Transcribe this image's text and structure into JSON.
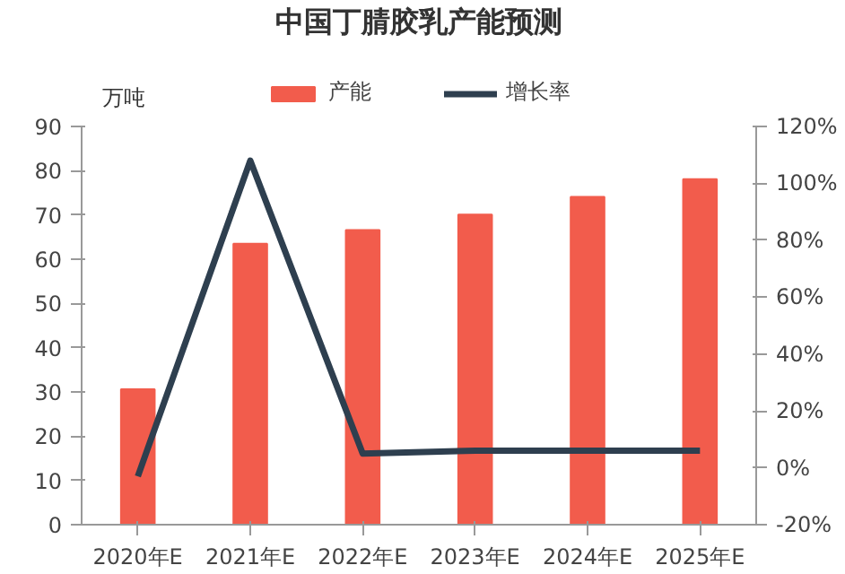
{
  "chart_data": {
    "type": "bar",
    "title": "中国丁腈胶乳产能预测",
    "ylabel": "万吨",
    "categories": [
      "2020年E",
      "2021年E",
      "2022年E",
      "2023年E",
      "2024年E",
      "2025年E"
    ],
    "series": [
      {
        "name": "产能",
        "color": "#f25c4c",
        "values": [
          30.6,
          63.5,
          66.6,
          70.1,
          74.1,
          78.1
        ]
      },
      {
        "name": "增长率",
        "type": "line",
        "axis": "y2",
        "color": "#2e3f4f",
        "values": [
          -3,
          108,
          5,
          6,
          6,
          6
        ]
      }
    ],
    "ylim": [
      0,
      90
    ],
    "yticks": [
      0,
      10,
      20,
      30,
      40,
      50,
      60,
      70,
      80,
      90
    ],
    "y2lim": [
      -20,
      120
    ],
    "y2ticks": [
      {
        "value": -20,
        "label": "-20%"
      },
      {
        "value": 0,
        "label": "0%"
      },
      {
        "value": 20,
        "label": "20%"
      },
      {
        "value": 40,
        "label": "40%"
      },
      {
        "value": 60,
        "label": "60%"
      },
      {
        "value": 80,
        "label": "80%"
      },
      {
        "value": 100,
        "label": "100%"
      },
      {
        "value": 120,
        "label": "120%"
      }
    ],
    "legend": "top",
    "marker": "none",
    "line_style": "solid"
  }
}
